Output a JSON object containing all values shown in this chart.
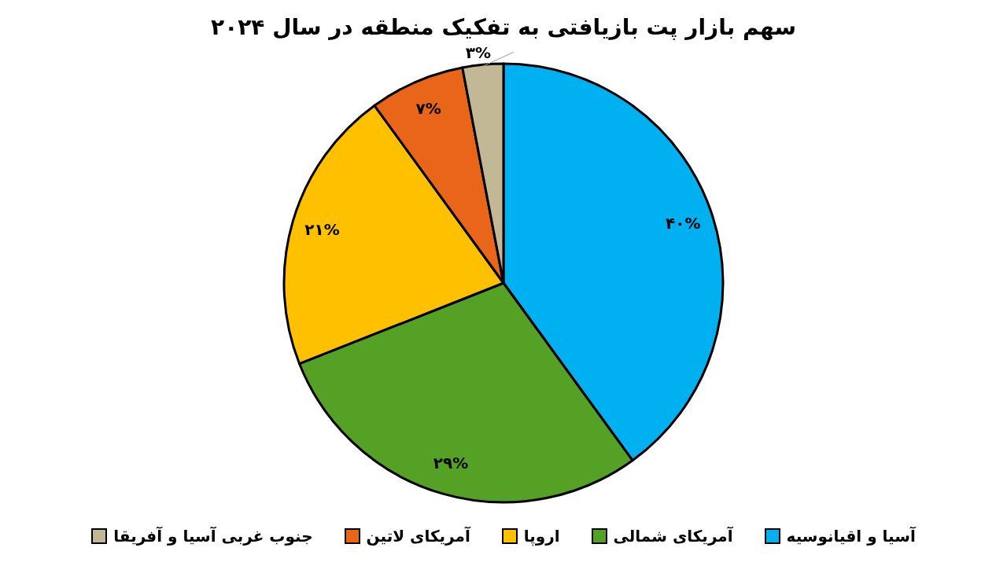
{
  "chart_data": {
    "type": "pie",
    "title": "سهم بازار پت بازیافتی به تفکیک منطقه در سال ۲۰۲۴",
    "categories": [
      "آسیا و اقیانوسیه",
      "آمریکای شمالی",
      "اروپا",
      "آمریکای لاتین",
      "جنوب غربی آسیا و آفریقا"
    ],
    "values": [
      40,
      29,
      21,
      7,
      3
    ],
    "value_labels": [
      "۴۰%",
      "۲۹%",
      "۲۱%",
      "۷%",
      "۳%"
    ],
    "colors": [
      "#00b0f0",
      "#55a125",
      "#ffc000",
      "#e8651a",
      "#c2b896"
    ],
    "legend": "bottom"
  }
}
